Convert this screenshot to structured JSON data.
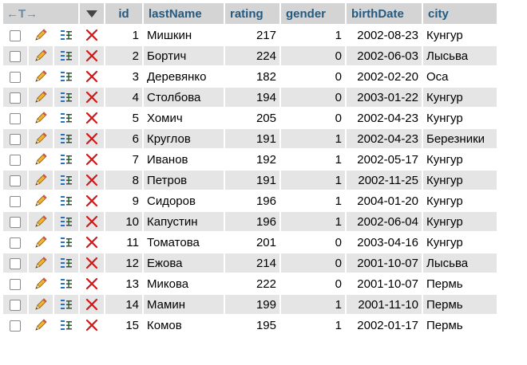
{
  "header": {
    "nav_arrows": "←T→",
    "columns": [
      "id",
      "lastName",
      "rating",
      "gender",
      "birthDate",
      "city"
    ]
  },
  "icons": {
    "checkbox": "checkbox-icon",
    "edit": "pencil-icon",
    "copy": "copy-row-icon",
    "delete": "delete-x-icon"
  },
  "colors": {
    "header_bg": "#d4d4d4",
    "header_text": "#235a81",
    "row_even": "#e5e5e5",
    "delete_red": "#d01818"
  },
  "rows": [
    {
      "id": "1",
      "lastName": "Мишкин",
      "rating": "217",
      "gender": "1",
      "birthDate": "2002-08-23",
      "city": "Кунгур"
    },
    {
      "id": "2",
      "lastName": "Бортич",
      "rating": "224",
      "gender": "0",
      "birthDate": "2002-06-03",
      "city": "Лысьва"
    },
    {
      "id": "3",
      "lastName": "Деревянко",
      "rating": "182",
      "gender": "0",
      "birthDate": "2002-02-20",
      "city": "Оса"
    },
    {
      "id": "4",
      "lastName": "Столбова",
      "rating": "194",
      "gender": "0",
      "birthDate": "2003-01-22",
      "city": "Кунгур"
    },
    {
      "id": "5",
      "lastName": "Хомич",
      "rating": "205",
      "gender": "0",
      "birthDate": "2002-04-23",
      "city": "Кунгур"
    },
    {
      "id": "6",
      "lastName": "Круглов",
      "rating": "191",
      "gender": "1",
      "birthDate": "2002-04-23",
      "city": "Березники"
    },
    {
      "id": "7",
      "lastName": "Иванов",
      "rating": "192",
      "gender": "1",
      "birthDate": "2002-05-17",
      "city": "Кунгур"
    },
    {
      "id": "8",
      "lastName": "Петров",
      "rating": "191",
      "gender": "1",
      "birthDate": "2002-11-25",
      "city": "Кунгур"
    },
    {
      "id": "9",
      "lastName": "Сидоров",
      "rating": "196",
      "gender": "1",
      "birthDate": "2004-01-20",
      "city": "Кунгур"
    },
    {
      "id": "10",
      "lastName": "Капустин",
      "rating": "196",
      "gender": "1",
      "birthDate": "2002-06-04",
      "city": "Кунгур"
    },
    {
      "id": "11",
      "lastName": "Томатова",
      "rating": "201",
      "gender": "0",
      "birthDate": "2003-04-16",
      "city": "Кунгур"
    },
    {
      "id": "12",
      "lastName": "Ежова",
      "rating": "214",
      "gender": "0",
      "birthDate": "2001-10-07",
      "city": "Лысьва"
    },
    {
      "id": "13",
      "lastName": "Микова",
      "rating": "222",
      "gender": "0",
      "birthDate": "2001-10-07",
      "city": "Пермь"
    },
    {
      "id": "14",
      "lastName": "Мамин",
      "rating": "199",
      "gender": "1",
      "birthDate": "2001-11-10",
      "city": "Пермь"
    },
    {
      "id": "15",
      "lastName": "Комов",
      "rating": "195",
      "gender": "1",
      "birthDate": "2002-01-17",
      "city": "Пермь"
    }
  ]
}
